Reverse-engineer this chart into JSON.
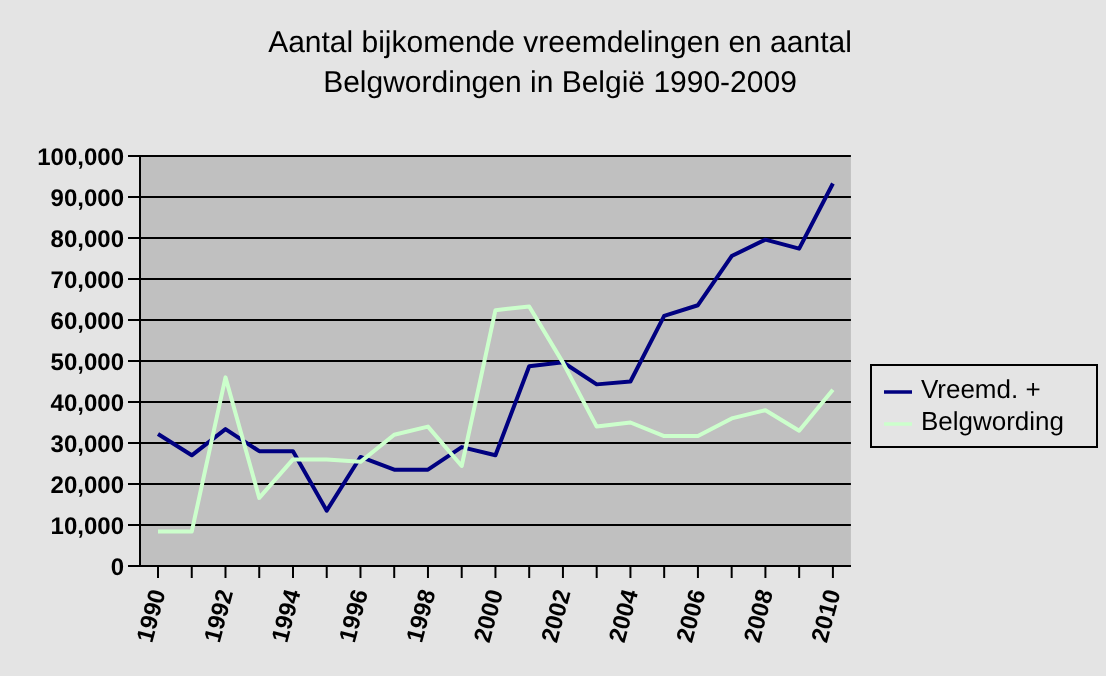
{
  "chart_data": {
    "type": "line",
    "title": "Aantal bijkomende vreemdelingen en aantal Belgwordingen in België 1990-2009",
    "categories": [
      "1990",
      null,
      "1992",
      null,
      "1994",
      null,
      "1996",
      null,
      "1998",
      null,
      "2000",
      null,
      "2002",
      null,
      "2004",
      null,
      "2006",
      null,
      "2008",
      null,
      "2010"
    ],
    "series": [
      {
        "name": "Vreemd. +",
        "color": "#000080",
        "values": [
          32200,
          27000,
          33400,
          28000,
          28000,
          13500,
          26600,
          23500,
          23500,
          29000,
          27000,
          48700,
          49700,
          44300,
          45000,
          61000,
          63600,
          75600,
          79600,
          77400,
          93300
        ]
      },
      {
        "name": "Belgwording",
        "color": "#ccffcc",
        "values": [
          8400,
          8400,
          46000,
          16600,
          26000,
          26000,
          25400,
          32000,
          34000,
          24400,
          62400,
          63300,
          49600,
          34000,
          35000,
          31700,
          31700,
          36000,
          38000,
          33000,
          43000
        ]
      }
    ],
    "ylim": [
      0,
      100000
    ],
    "yticks": [
      {
        "value": 0,
        "label": "0"
      },
      {
        "value": 10000,
        "label": "10,000"
      },
      {
        "value": 20000,
        "label": "20,000"
      },
      {
        "value": 30000,
        "label": "30,000"
      },
      {
        "value": 40000,
        "label": "40,000"
      },
      {
        "value": 50000,
        "label": "50,000"
      },
      {
        "value": 60000,
        "label": "60,000"
      },
      {
        "value": 70000,
        "label": "70,000"
      },
      {
        "value": 80000,
        "label": "80,000"
      },
      {
        "value": 90000,
        "label": "90,000"
      },
      {
        "value": 100000,
        "label": "100,000"
      }
    ],
    "grid": "y",
    "legend": "right",
    "marker": "none",
    "line_style": "solid"
  }
}
